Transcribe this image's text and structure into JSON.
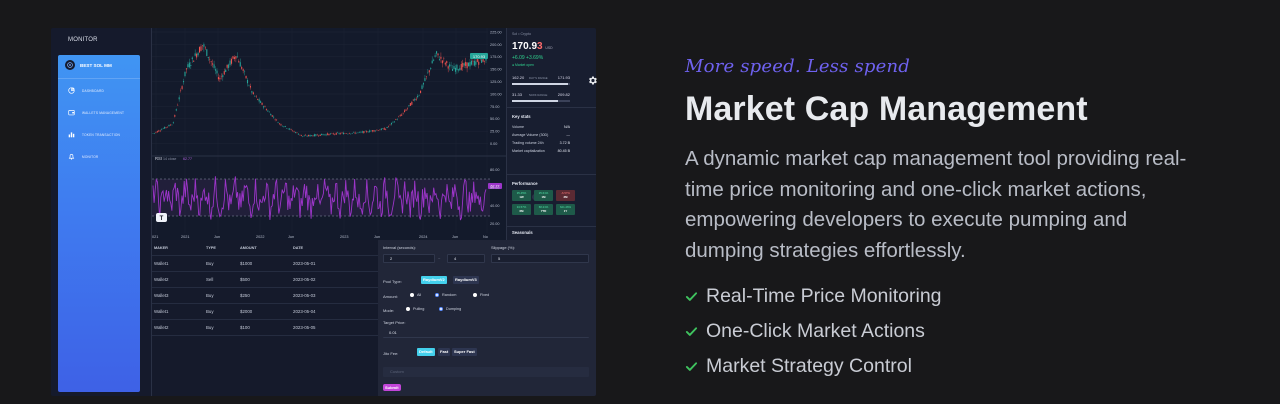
{
  "dashboard": {
    "title": "MONITOR",
    "brand": "BEST SOL MM",
    "nav": [
      "DASHBOARD",
      "WALLETS MANAGEMENT",
      "TOKEN TRANSACTION",
      "MONITOR"
    ],
    "chart": {
      "price_axis": [
        "225.00",
        "200.00",
        "175.00",
        "150.00",
        "125.00",
        "100.00",
        "75.00",
        "50.00",
        "25.00",
        "0.00"
      ],
      "price_tag": "170.93",
      "rsi_label": "RSI",
      "rsi_sub": "14 close",
      "rsi_value": "62.77",
      "rsi_axis": [
        "80.00",
        "60.00",
        "40.00",
        "20.00"
      ],
      "time_axis": [
        "021",
        "2021",
        "Jun",
        "2022",
        "Jun",
        "2023",
        "Jun",
        "2024",
        "Jun",
        "No"
      ]
    },
    "stats": {
      "breadcrumb": "Sol • Crypto",
      "price_main": "170.9",
      "price_hl": "3",
      "currency": "USD",
      "change": "+6.09 +3.69%",
      "status": "● Market open",
      "day_low": "162.20",
      "day_range_label": "DAY'S RANGE",
      "day_high": "171.93",
      "wk_low": "31.33",
      "wk_range_label": "52WK RANGE",
      "wk_high": "209.82",
      "key_stats_title": "Key stats",
      "key_stats": [
        {
          "label": "Volume",
          "value": "N/A"
        },
        {
          "label": "Average Volume (30D)",
          "value": "—"
        },
        {
          "label": "Trading volume 24h",
          "value": "3.72 B"
        },
        {
          "label": "Market capitalization",
          "value": "80.45 B"
        }
      ],
      "more": "⌄",
      "performance_title": "Performance",
      "performance": [
        {
          "value": "35.45%",
          "label": "1W",
          "color": "#1e5a49"
        },
        {
          "value": "25.61%",
          "label": "1M",
          "color": "#1e5a49"
        },
        {
          "value": "-6.57%",
          "label": "3M",
          "color": "#5b2a33"
        },
        {
          "value": "34.57%",
          "label": "6M",
          "color": "#1e5a49"
        },
        {
          "value": "68.21%",
          "label": "YTD",
          "color": "#1e5a49"
        },
        {
          "value": "621.46%",
          "label": "1Y",
          "color": "#1e5a49"
        }
      ],
      "seasonals_title": "Seasonals"
    },
    "orders": {
      "headers": [
        "MAKER",
        "TYPE",
        "AMOUNT",
        "DATE"
      ],
      "rows": [
        [
          "Wallet1",
          "Buy",
          "$1000",
          "2023-05-01"
        ],
        [
          "Wallet2",
          "Sell",
          "$500",
          "2023-05-02"
        ],
        [
          "Wallet3",
          "Buy",
          "$250",
          "2023-05-03"
        ],
        [
          "Wallet1",
          "Buy",
          "$2000",
          "2023-05-04"
        ],
        [
          "Wallet2",
          "Buy",
          "$100",
          "2023-05-05"
        ]
      ]
    },
    "form": {
      "interval_label": "Interval (seconds):",
      "interval_min": "2",
      "interval_max": "4",
      "slippage_label": "Slippage (%):",
      "slippage_value": "5",
      "pool_type_label": "Pool Type:",
      "pool_a": "RaydiumV2",
      "pool_b": "RaydiumV3",
      "amount_label": "Amount:",
      "amount_opts": [
        "All",
        "Random",
        "Fixed"
      ],
      "mode_label": "Mode:",
      "mode_opts": [
        "Pulling",
        "Dumping"
      ],
      "target_label": "Target Price:",
      "target_value": "0.01",
      "jito_label": "Jito Fee:",
      "jito_opts": [
        "Default",
        "Fast",
        "Super Fast"
      ],
      "custom_placeholder": "Custom",
      "submit": "Submit"
    }
  },
  "copy": {
    "tagline": "More speed. Less spend",
    "headline": "Market Cap Management",
    "description": "A dynamic market cap management tool providing real-time price monitoring and one-click market actions, empowering developers to execute pumping and dumping strategies effortlessly.",
    "features": [
      "Real-Time Price Monitoring",
      "One-Click Market Actions",
      "Market Strategy Control"
    ]
  },
  "colors": {
    "accent": "#6f62f0",
    "check": "#3fc35f",
    "candle_up": "#26a69a",
    "candle_down": "#ef5350",
    "rsi": "#9c35c9"
  }
}
